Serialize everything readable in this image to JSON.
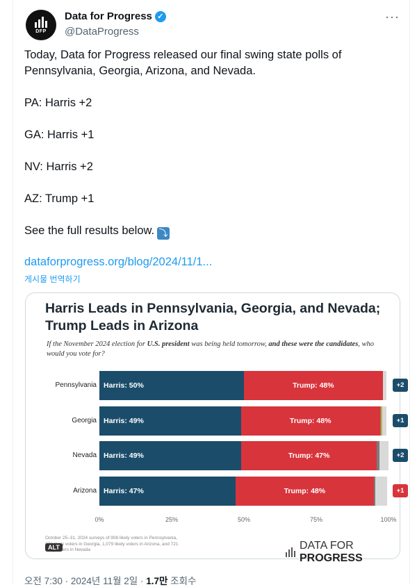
{
  "author": {
    "name": "Data for Progress",
    "handle": "@DataProgress",
    "avatar_text": "DFP",
    "more_label": "···"
  },
  "tweet": {
    "intro": "Today, Data for Progress released our final swing state polls of Pennsylvania, Georgia, Arizona, and Nevada.",
    "lines": [
      "PA: Harris +2",
      "GA: Harris +1",
      "NV: Harris +2",
      "AZ: Trump +1"
    ],
    "outro": "See the full results below.",
    "outro_emoji": "⤵",
    "link": "dataforprogress.org/blog/2024/11/1...",
    "translate": "게시물 번역하기"
  },
  "card": {
    "title": "Harris Leads in Pennsylvania, Georgia, and Nevada; Trump Leads in Arizona",
    "question_pre": "If the November 2024 election for ",
    "question_bold1": "U.S. president",
    "question_mid": " was being held tomorrow, ",
    "question_bold2": "and these were the candidates",
    "question_post": ", who would you vote for?",
    "footnote": "October 25–31, 2024 surveys of 908 likely voters in Pennsylvania, 872 likely voters in Georgia, 1,079 likely voters in Arizona, and 721 likely voters in Nevada",
    "alt_label": "ALT",
    "brand_light": "DATA FOR ",
    "brand_bold": "PROGRESS"
  },
  "chart_data": {
    "type": "bar",
    "orientation": "horizontal-stacked",
    "categories": [
      "Pennsylvania",
      "Georgia",
      "Nevada",
      "Arizona"
    ],
    "series": [
      {
        "name": "Harris",
        "values": [
          50,
          49,
          49,
          47
        ],
        "color": "#1b4d6b"
      },
      {
        "name": "Trump",
        "values": [
          48,
          48,
          47,
          48
        ],
        "color": "#d8343c"
      }
    ],
    "segment_labels": {
      "harris": [
        "Harris: 50%",
        "Harris: 49%",
        "Harris: 49%",
        "Harris: 47%"
      ],
      "trump": [
        "Trump: 48%",
        "Trump: 48%",
        "Trump: 47%",
        "Trump: 48%"
      ]
    },
    "margins": [
      {
        "label": "+2",
        "leader": "harris"
      },
      {
        "label": "+1",
        "leader": "harris"
      },
      {
        "label": "+2",
        "leader": "harris"
      },
      {
        "label": "+1",
        "leader": "trump"
      }
    ],
    "x_ticks": [
      "0%",
      "25%",
      "50%",
      "75%",
      "100%"
    ],
    "xlim": [
      0,
      100
    ]
  },
  "meta": {
    "time": "오전 7:30 · 2024년 11월 2일 · ",
    "views": "1.7만",
    "views_suffix": " 조회수"
  }
}
